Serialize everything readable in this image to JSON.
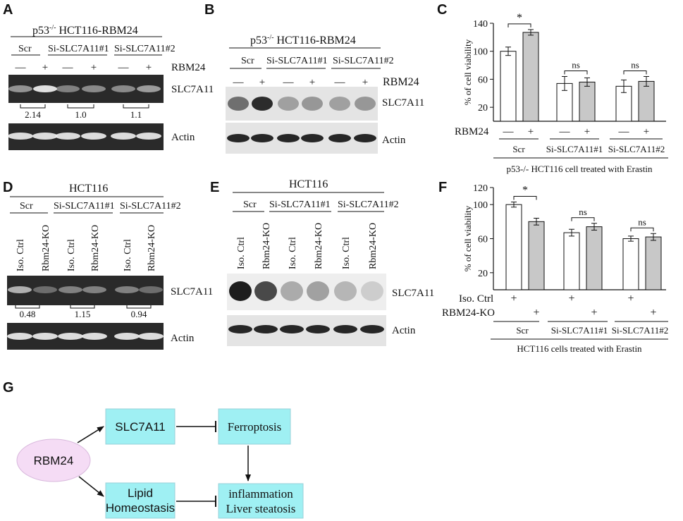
{
  "panels": {
    "A": {
      "letter": "A",
      "title": "p53",
      "title_sup": "-/-",
      "title_rest": " HCT116-RBM24",
      "groups": [
        "Scr",
        "Si-SLC7A11#1",
        "Si-SLC7A11#2"
      ],
      "signs": [
        "—",
        "+",
        "—",
        "+",
        "—",
        "+"
      ],
      "treatment_label": "RBM24",
      "band1_label": "SLC7A11",
      "band2_label": "Actin",
      "ratios": [
        "2.14",
        "1.0",
        "1.1"
      ]
    },
    "B": {
      "letter": "B",
      "title": "p53",
      "title_sup": "-/-",
      "title_rest": " HCT116-RBM24",
      "groups": [
        "Scr",
        "Si-SLC7A11#1",
        "Si-SLC7A11#2"
      ],
      "signs": [
        "—",
        "+",
        "—",
        "+",
        "—",
        "+"
      ],
      "treatment_label": "RBM24",
      "band1_label": "SLC7A11",
      "band2_label": "Actin"
    },
    "D": {
      "letter": "D",
      "title": "HCT116",
      "groups": [
        "Scr",
        "Si-SLC7A11#1",
        "Si-SLC7A11#2"
      ],
      "lanes": [
        "Iso. Ctrl",
        "Rbm24-KO",
        "Iso. Ctrl",
        "Rbm24-KO",
        "Iso. Ctrl",
        "Rbm24-KO"
      ],
      "band1_label": "SLC7A11",
      "band2_label": "Actin",
      "ratios": [
        "0.48",
        "1.15",
        "0.94"
      ]
    },
    "E": {
      "letter": "E",
      "title": "HCT116",
      "groups": [
        "Scr",
        "Si-SLC7A11#1",
        "Si-SLC7A11#2"
      ],
      "lanes": [
        "Iso. Ctrl",
        "Rbm24-KO",
        "Iso. Ctrl",
        "Rbm24-KO",
        "Iso. Ctrl",
        "Rbm24-KO"
      ],
      "band1_label": "SLC7A11",
      "band2_label": "Actin"
    },
    "G": {
      "letter": "G",
      "nodes": {
        "rbm24": "RBM24",
        "slc7a11": "SLC7A11",
        "ferroptosis": "Ferroptosis",
        "lipid_line1": "Lipid",
        "lipid_line2": "Homeostasis",
        "inflam_line1": "inflammation",
        "inflam_line2": "Liver steatosis"
      },
      "colors": {
        "box": "#9ff0f3",
        "box_border": "#9ad0d8",
        "ellipse": "#f5dcf5",
        "ellipse_border": "#d8b8dc"
      }
    }
  },
  "chart_data": [
    {
      "panel": "C",
      "type": "bar",
      "ylabel": "% of cell viability",
      "ylim": [
        0,
        140
      ],
      "yticks": [
        20,
        60,
        100,
        140
      ],
      "row1_label": "RBM24",
      "row1_signs": [
        "—",
        "+",
        "—",
        "+",
        "—",
        "+"
      ],
      "groups": [
        "Scr",
        "Si-SLC7A11#1",
        "Si-SLC7A11#2"
      ],
      "caption": "p53-/- HCT116 cell treated with Erastin",
      "values": [
        100,
        127,
        54,
        56,
        50,
        57
      ],
      "errors": [
        6,
        4,
        10,
        6,
        9,
        7
      ],
      "fills": [
        "#ffffff",
        "#c8c8c8",
        "#ffffff",
        "#c8c8c8",
        "#ffffff",
        "#c8c8c8"
      ],
      "significance": [
        "*",
        "ns",
        "ns"
      ]
    },
    {
      "panel": "F",
      "type": "bar",
      "ylabel": "% of cell viability",
      "ylim": [
        0,
        120
      ],
      "yticks": [
        20,
        60,
        100
      ],
      "ytick_extra": "120",
      "row1_label": "Iso. Ctrl",
      "row2_label": "RBM24-KO",
      "row_signs": [
        "+",
        "+",
        "+"
      ],
      "groups": [
        "Scr",
        "Si-SLC7A11#1",
        "Si-SLC7A11#2"
      ],
      "caption": "HCT116 cells treated with Erastin",
      "values": [
        100,
        80,
        67,
        74,
        60,
        62
      ],
      "errors": [
        3,
        4,
        4,
        4,
        3,
        4
      ],
      "fills": [
        "#ffffff",
        "#c8c8c8",
        "#ffffff",
        "#c8c8c8",
        "#ffffff",
        "#c8c8c8"
      ],
      "significance": [
        "*",
        "ns",
        "ns"
      ]
    }
  ]
}
